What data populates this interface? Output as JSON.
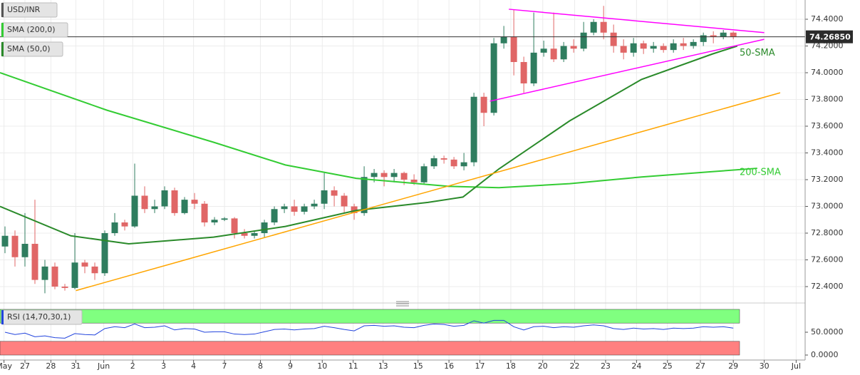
{
  "chart_data": [
    {
      "type": "candlestick",
      "title": "USD/INR",
      "up_color": "#2f7d5f",
      "down_color": "#e06666",
      "xlim": [
        0,
        80.7
      ],
      "ylim": [
        72.304,
        74.544
      ],
      "grid": true,
      "xticks": [
        {
          "value": 0.4,
          "label": "May"
        },
        {
          "value": 2.5,
          "label": "27"
        },
        {
          "value": 5.1,
          "label": "28"
        },
        {
          "value": 7.6,
          "label": "31"
        },
        {
          "value": 10.4,
          "label": "Jun"
        },
        {
          "value": 13.3,
          "label": "2"
        },
        {
          "value": 16.4,
          "label": "3"
        },
        {
          "value": 19.4,
          "label": "4"
        },
        {
          "value": 22.5,
          "label": "7"
        },
        {
          "value": 26.1,
          "label": "8"
        },
        {
          "value": 29.1,
          "label": "9"
        },
        {
          "value": 32.3,
          "label": "10"
        },
        {
          "value": 35.4,
          "label": "11"
        },
        {
          "value": 38.4,
          "label": "13"
        },
        {
          "value": 41.9,
          "label": "15"
        },
        {
          "value": 45,
          "label": "16"
        },
        {
          "value": 48.1,
          "label": "17"
        },
        {
          "value": 51.2,
          "label": "18"
        },
        {
          "value": 54.4,
          "label": "20"
        },
        {
          "value": 57.6,
          "label": "22"
        },
        {
          "value": 60.7,
          "label": "23"
        },
        {
          "value": 63.8,
          "label": "24"
        },
        {
          "value": 66.9,
          "label": "25"
        },
        {
          "value": 70.2,
          "label": "27"
        },
        {
          "value": 73.5,
          "label": "29"
        },
        {
          "value": 76.6,
          "label": "30"
        },
        {
          "value": 79.8,
          "label": "Jul"
        }
      ],
      "yticks": [
        {
          "value": 72.4,
          "label": "72.4000"
        },
        {
          "value": 72.6,
          "label": "72.6000"
        },
        {
          "value": 72.8,
          "label": "72.8000"
        },
        {
          "value": 73.0,
          "label": "73.0000"
        },
        {
          "value": 73.2,
          "label": "73.2000"
        },
        {
          "value": 73.4,
          "label": "73.4000"
        },
        {
          "value": 73.6,
          "label": "73.6000"
        },
        {
          "value": 73.8,
          "label": "73.8000"
        },
        {
          "value": 74.0,
          "label": "74.0000"
        },
        {
          "value": 74.2,
          "label": "74.2000"
        },
        {
          "value": 74.4,
          "label": "74.4000"
        }
      ],
      "current_price": {
        "value": 74.2685,
        "label": "74.26850"
      },
      "candles": {
        "x": [
          0.5,
          1.5,
          2.5,
          3.5,
          4.5,
          5.5,
          6.5,
          7.5,
          8.5,
          9.5,
          10.5,
          11.5,
          12.5,
          13.5,
          14.5,
          15.5,
          16.5,
          17.5,
          18.5,
          19.5,
          20.5,
          21.5,
          22.5,
          23.5,
          24.5,
          25.5,
          26.5,
          27.5,
          28.5,
          29.5,
          30.5,
          31.5,
          32.5,
          33.5,
          34.5,
          35.5,
          36.5,
          37.5,
          38.5,
          39.5,
          40.5,
          41.5,
          42.5,
          43.5,
          44.5,
          45.5,
          46.5,
          47.5,
          48.5,
          49.5,
          50.5,
          51.5,
          52.5,
          53.5,
          54.5,
          55.5,
          56.5,
          57.5,
          58.5,
          59.5,
          60.5,
          61.5,
          62.5,
          63.5,
          64.5,
          65.5,
          66.5,
          67.5,
          68.5,
          69.5,
          70.5,
          71.5,
          72.5,
          73.5
        ],
        "open": [
          72.7,
          72.78,
          72.62,
          72.72,
          72.45,
          72.55,
          72.4,
          72.39,
          72.58,
          72.55,
          72.5,
          72.8,
          72.88,
          72.85,
          73.08,
          72.98,
          73.0,
          73.12,
          72.95,
          73.05,
          73.02,
          72.88,
          72.9,
          72.91,
          72.8,
          72.78,
          72.8,
          72.88,
          72.98,
          73.0,
          72.96,
          73.0,
          73.02,
          73.12,
          73.08,
          73.0,
          72.95,
          73.22,
          73.25,
          73.22,
          73.25,
          73.2,
          73.18,
          73.3,
          73.36,
          73.35,
          73.3,
          73.33,
          73.82,
          73.7,
          74.22,
          74.27,
          74.08,
          73.92,
          74.15,
          74.18,
          74.1,
          74.2,
          74.18,
          74.3,
          74.38,
          74.3,
          74.2,
          74.15,
          74.22,
          74.18,
          74.2,
          74.17,
          74.22,
          74.2,
          74.23,
          74.28,
          74.27,
          74.3
        ],
        "high": [
          72.85,
          72.82,
          72.95,
          73.05,
          72.6,
          72.58,
          72.42,
          72.8,
          72.6,
          72.58,
          72.82,
          72.95,
          72.9,
          73.32,
          73.15,
          73.05,
          73.15,
          73.14,
          73.07,
          73.1,
          73.04,
          72.92,
          72.92,
          72.92,
          72.83,
          72.82,
          72.9,
          73.0,
          73.02,
          73.05,
          73.02,
          73.05,
          73.25,
          73.15,
          73.1,
          73.02,
          73.3,
          73.28,
          73.27,
          73.28,
          73.26,
          73.24,
          73.32,
          73.38,
          73.38,
          73.37,
          73.4,
          73.85,
          73.85,
          74.26,
          74.35,
          74.47,
          74.12,
          74.45,
          74.24,
          74.45,
          74.23,
          74.25,
          74.38,
          74.4,
          74.5,
          74.36,
          74.25,
          74.26,
          74.24,
          74.23,
          74.22,
          74.25,
          74.26,
          74.25,
          74.3,
          74.31,
          74.32,
          74.31
        ],
        "low": [
          72.65,
          72.55,
          72.55,
          72.42,
          72.35,
          72.38,
          72.37,
          72.38,
          72.5,
          72.45,
          72.48,
          72.78,
          72.82,
          72.84,
          72.95,
          72.95,
          72.98,
          72.93,
          72.94,
          72.98,
          72.85,
          72.86,
          72.89,
          72.76,
          72.76,
          72.76,
          72.77,
          72.86,
          72.95,
          72.93,
          72.94,
          72.98,
          72.98,
          73.0,
          72.95,
          72.9,
          72.93,
          73.18,
          73.15,
          73.18,
          73.16,
          73.16,
          73.17,
          73.28,
          73.32,
          73.28,
          73.27,
          73.3,
          73.6,
          73.68,
          74.18,
          73.98,
          73.85,
          73.9,
          74.12,
          74.08,
          74.08,
          74.15,
          74.16,
          74.28,
          74.25,
          74.15,
          74.1,
          74.12,
          74.14,
          74.15,
          74.15,
          74.15,
          74.17,
          74.18,
          74.2,
          74.22,
          74.25,
          74.25
        ],
        "close": [
          72.78,
          72.62,
          72.72,
          72.45,
          72.55,
          72.4,
          72.39,
          72.58,
          72.55,
          72.5,
          72.8,
          72.88,
          72.85,
          73.08,
          72.98,
          73.0,
          73.12,
          72.95,
          73.05,
          73.02,
          72.88,
          72.9,
          72.91,
          72.8,
          72.78,
          72.8,
          72.88,
          72.98,
          73.0,
          72.96,
          73.0,
          73.02,
          73.12,
          73.08,
          73.0,
          72.95,
          73.22,
          73.25,
          73.22,
          73.25,
          73.2,
          73.18,
          73.3,
          73.36,
          73.35,
          73.3,
          73.33,
          73.82,
          73.7,
          74.22,
          74.27,
          74.08,
          73.92,
          74.15,
          74.18,
          74.1,
          74.2,
          74.18,
          74.3,
          74.38,
          74.3,
          74.2,
          74.15,
          74.22,
          74.18,
          74.2,
          74.17,
          74.22,
          74.2,
          74.23,
          74.28,
          74.27,
          74.3,
          74.27
        ]
      },
      "series": [
        {
          "name": "SMA (200,0)",
          "label": "200-SMA",
          "color": "#33cc33",
          "x": [
            0,
            10.7,
            21.4,
            28.6,
            35.7,
            45,
            50,
            57.1,
            64.3,
            71.4,
            75.9
          ],
          "values": [
            74.0,
            73.72,
            73.48,
            73.31,
            73.21,
            73.15,
            73.14,
            73.17,
            73.22,
            73.26,
            73.285
          ]
        },
        {
          "name": "SMA (50,0)",
          "label": "50-SMA",
          "color": "#2a8a2a",
          "x": [
            0,
            7.1,
            12.9,
            21.4,
            28.6,
            35.7,
            42.9,
            46.4,
            50,
            57.1,
            64.3,
            71.4,
            73.9
          ],
          "values": [
            73.0,
            72.78,
            72.72,
            72.77,
            72.85,
            72.97,
            73.03,
            73.07,
            73.28,
            73.64,
            73.95,
            74.14,
            74.2
          ]
        }
      ],
      "trend_lines": [
        {
          "color": "#ff00ff",
          "x": [
            51,
            76.6
          ],
          "values": [
            74.475,
            74.3
          ]
        },
        {
          "color": "#ff00ff",
          "x": [
            49.1,
            76.6
          ],
          "values": [
            73.787,
            74.25
          ]
        },
        {
          "color": "#ffa500",
          "x": [
            7.6,
            78.2
          ],
          "values": [
            72.37,
            73.85
          ]
        }
      ]
    },
    {
      "type": "line",
      "title": "RSI (14,70,30,1)",
      "xlim": [
        0,
        80.7
      ],
      "ylim": [
        -3.1,
        106.2
      ],
      "yticks": [
        {
          "value": 0,
          "label": "0.0000"
        },
        {
          "value": 50,
          "label": "50.0000"
        }
      ],
      "bands": [
        {
          "from": 70,
          "to": 100,
          "color": "#80ff80"
        },
        {
          "from": 0,
          "to": 30,
          "color": "#ff8080"
        }
      ],
      "series": [
        {
          "color": "#2244dd",
          "x": [
            0.5,
            1.5,
            2.5,
            3.5,
            4.5,
            5.5,
            6.5,
            7.5,
            8.5,
            9.5,
            10.5,
            11.5,
            12.5,
            13.5,
            14.5,
            15.5,
            16.5,
            17.5,
            18.5,
            19.5,
            20.5,
            21.5,
            22.5,
            23.5,
            24.5,
            25.5,
            26.5,
            27.5,
            28.5,
            29.5,
            30.5,
            31.5,
            32.5,
            33.5,
            34.5,
            35.5,
            36.5,
            37.5,
            38.5,
            39.5,
            40.5,
            41.5,
            42.5,
            43.5,
            44.5,
            45.5,
            46.5,
            47.5,
            48.5,
            49.5,
            50.5,
            51.5,
            52.5,
            53.5,
            54.5,
            55.5,
            56.5,
            57.5,
            58.5,
            59.5,
            60.5,
            61.5,
            62.5,
            63.5,
            64.5,
            65.5,
            66.5,
            67.5,
            68.5,
            69.5,
            70.5,
            71.5,
            72.5,
            73.5
          ],
          "values": [
            50,
            45,
            48,
            40,
            42,
            38,
            37,
            47,
            45,
            44,
            58,
            62,
            60,
            68,
            60,
            61,
            64,
            55,
            58,
            57,
            50,
            51,
            51,
            46,
            45,
            46,
            51,
            56,
            57,
            55,
            57,
            58,
            63,
            60,
            56,
            53,
            64,
            65,
            63,
            64,
            61,
            60,
            65,
            68,
            67,
            63,
            65,
            75,
            70,
            76,
            76,
            62,
            55,
            62,
            63,
            60,
            62,
            61,
            64,
            66,
            64,
            58,
            56,
            59,
            57,
            58,
            56,
            59,
            58,
            59,
            62,
            61,
            62,
            59
          ]
        }
      ]
    }
  ]
}
